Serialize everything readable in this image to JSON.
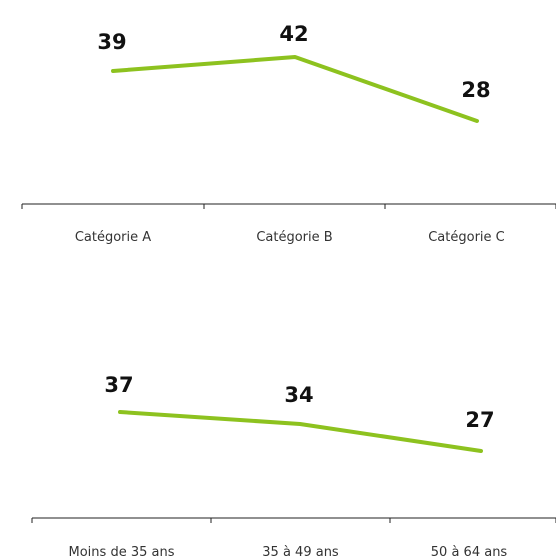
{
  "chart_data": [
    {
      "type": "line",
      "categories": [
        "Catégorie A",
        "Catégorie B",
        "Catégorie C"
      ],
      "series": [
        {
          "values": [
            39,
            42,
            28
          ],
          "color": "#8dc21f"
        }
      ],
      "data_labels": [
        "39",
        "42",
        "28"
      ],
      "grid": false,
      "legend": "none"
    },
    {
      "type": "line",
      "categories": [
        "Moins de 35 ans",
        "35 à 49 ans",
        "50 à 64 ans"
      ],
      "series": [
        {
          "values": [
            37,
            34,
            27
          ],
          "color": "#8dc21f"
        }
      ],
      "data_labels": [
        "37",
        "34",
        "27"
      ],
      "grid": false,
      "legend": "none"
    }
  ]
}
